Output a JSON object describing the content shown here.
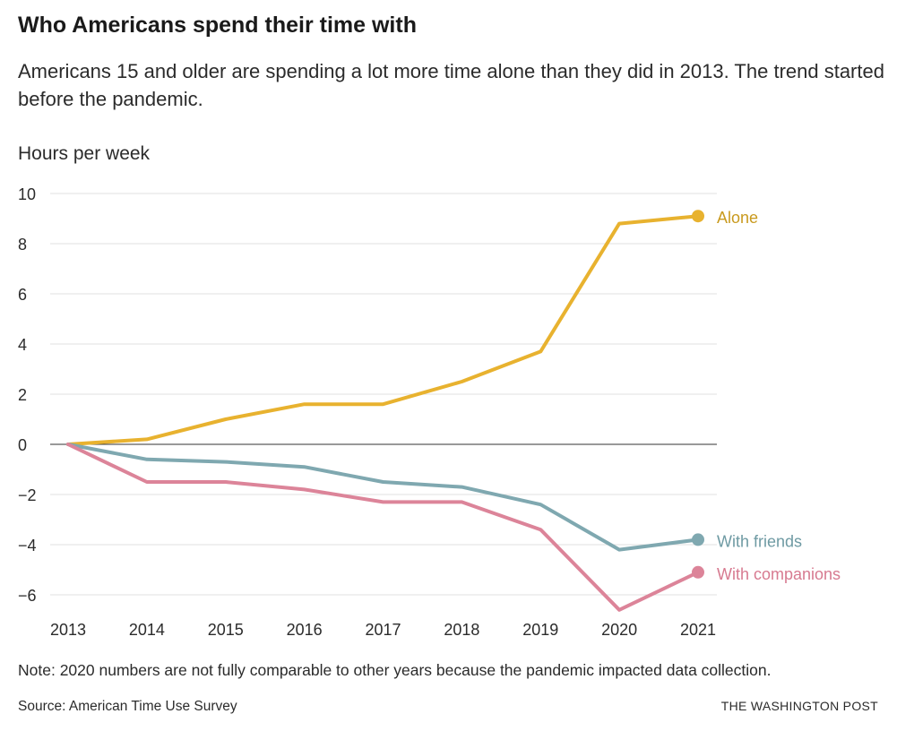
{
  "header": {
    "title": "Who Americans spend their time with",
    "subtitle": "Americans 15 and older are spending a lot more time alone than they did in 2013. The trend started before the pandemic."
  },
  "chart_data": {
    "type": "line",
    "ylabel": "Hours per week",
    "xlabel": "",
    "x": [
      "2013",
      "2014",
      "2015",
      "2016",
      "2017",
      "2018",
      "2019",
      "2020",
      "2021"
    ],
    "ylim": [
      -6.8,
      10
    ],
    "yticks": [
      10,
      8,
      6,
      4,
      2,
      0,
      -2,
      -4,
      -6
    ],
    "ytick_labels": [
      "10",
      "8",
      "6",
      "4",
      "2",
      "0",
      "−2",
      "−4",
      "−6"
    ],
    "grid": true,
    "legend": "direct labels at line ends",
    "series": [
      {
        "name": "Alone",
        "color": "#e8b22f",
        "label_color": "#c99a1e",
        "values": [
          0,
          0.2,
          1.0,
          1.6,
          1.6,
          2.5,
          3.7,
          8.8,
          9.1
        ]
      },
      {
        "name": "With friends",
        "color": "#7fa8b0",
        "label_color": "#6e9aa3",
        "values": [
          0,
          -0.6,
          -0.7,
          -0.9,
          -1.5,
          -1.7,
          -2.4,
          -4.2,
          -3.8
        ]
      },
      {
        "name": "With companions",
        "color": "#dc8499",
        "label_color": "#d77a90",
        "values": [
          0,
          -1.5,
          -1.5,
          -1.8,
          -2.3,
          -2.3,
          -3.4,
          -6.6,
          -5.1
        ]
      }
    ]
  },
  "footer": {
    "note": "Note: 2020 numbers are not fully comparable to other years because the pandemic impacted data collection.",
    "source": "Source: American Time Use Survey",
    "brand": "THE WASHINGTON POST"
  }
}
